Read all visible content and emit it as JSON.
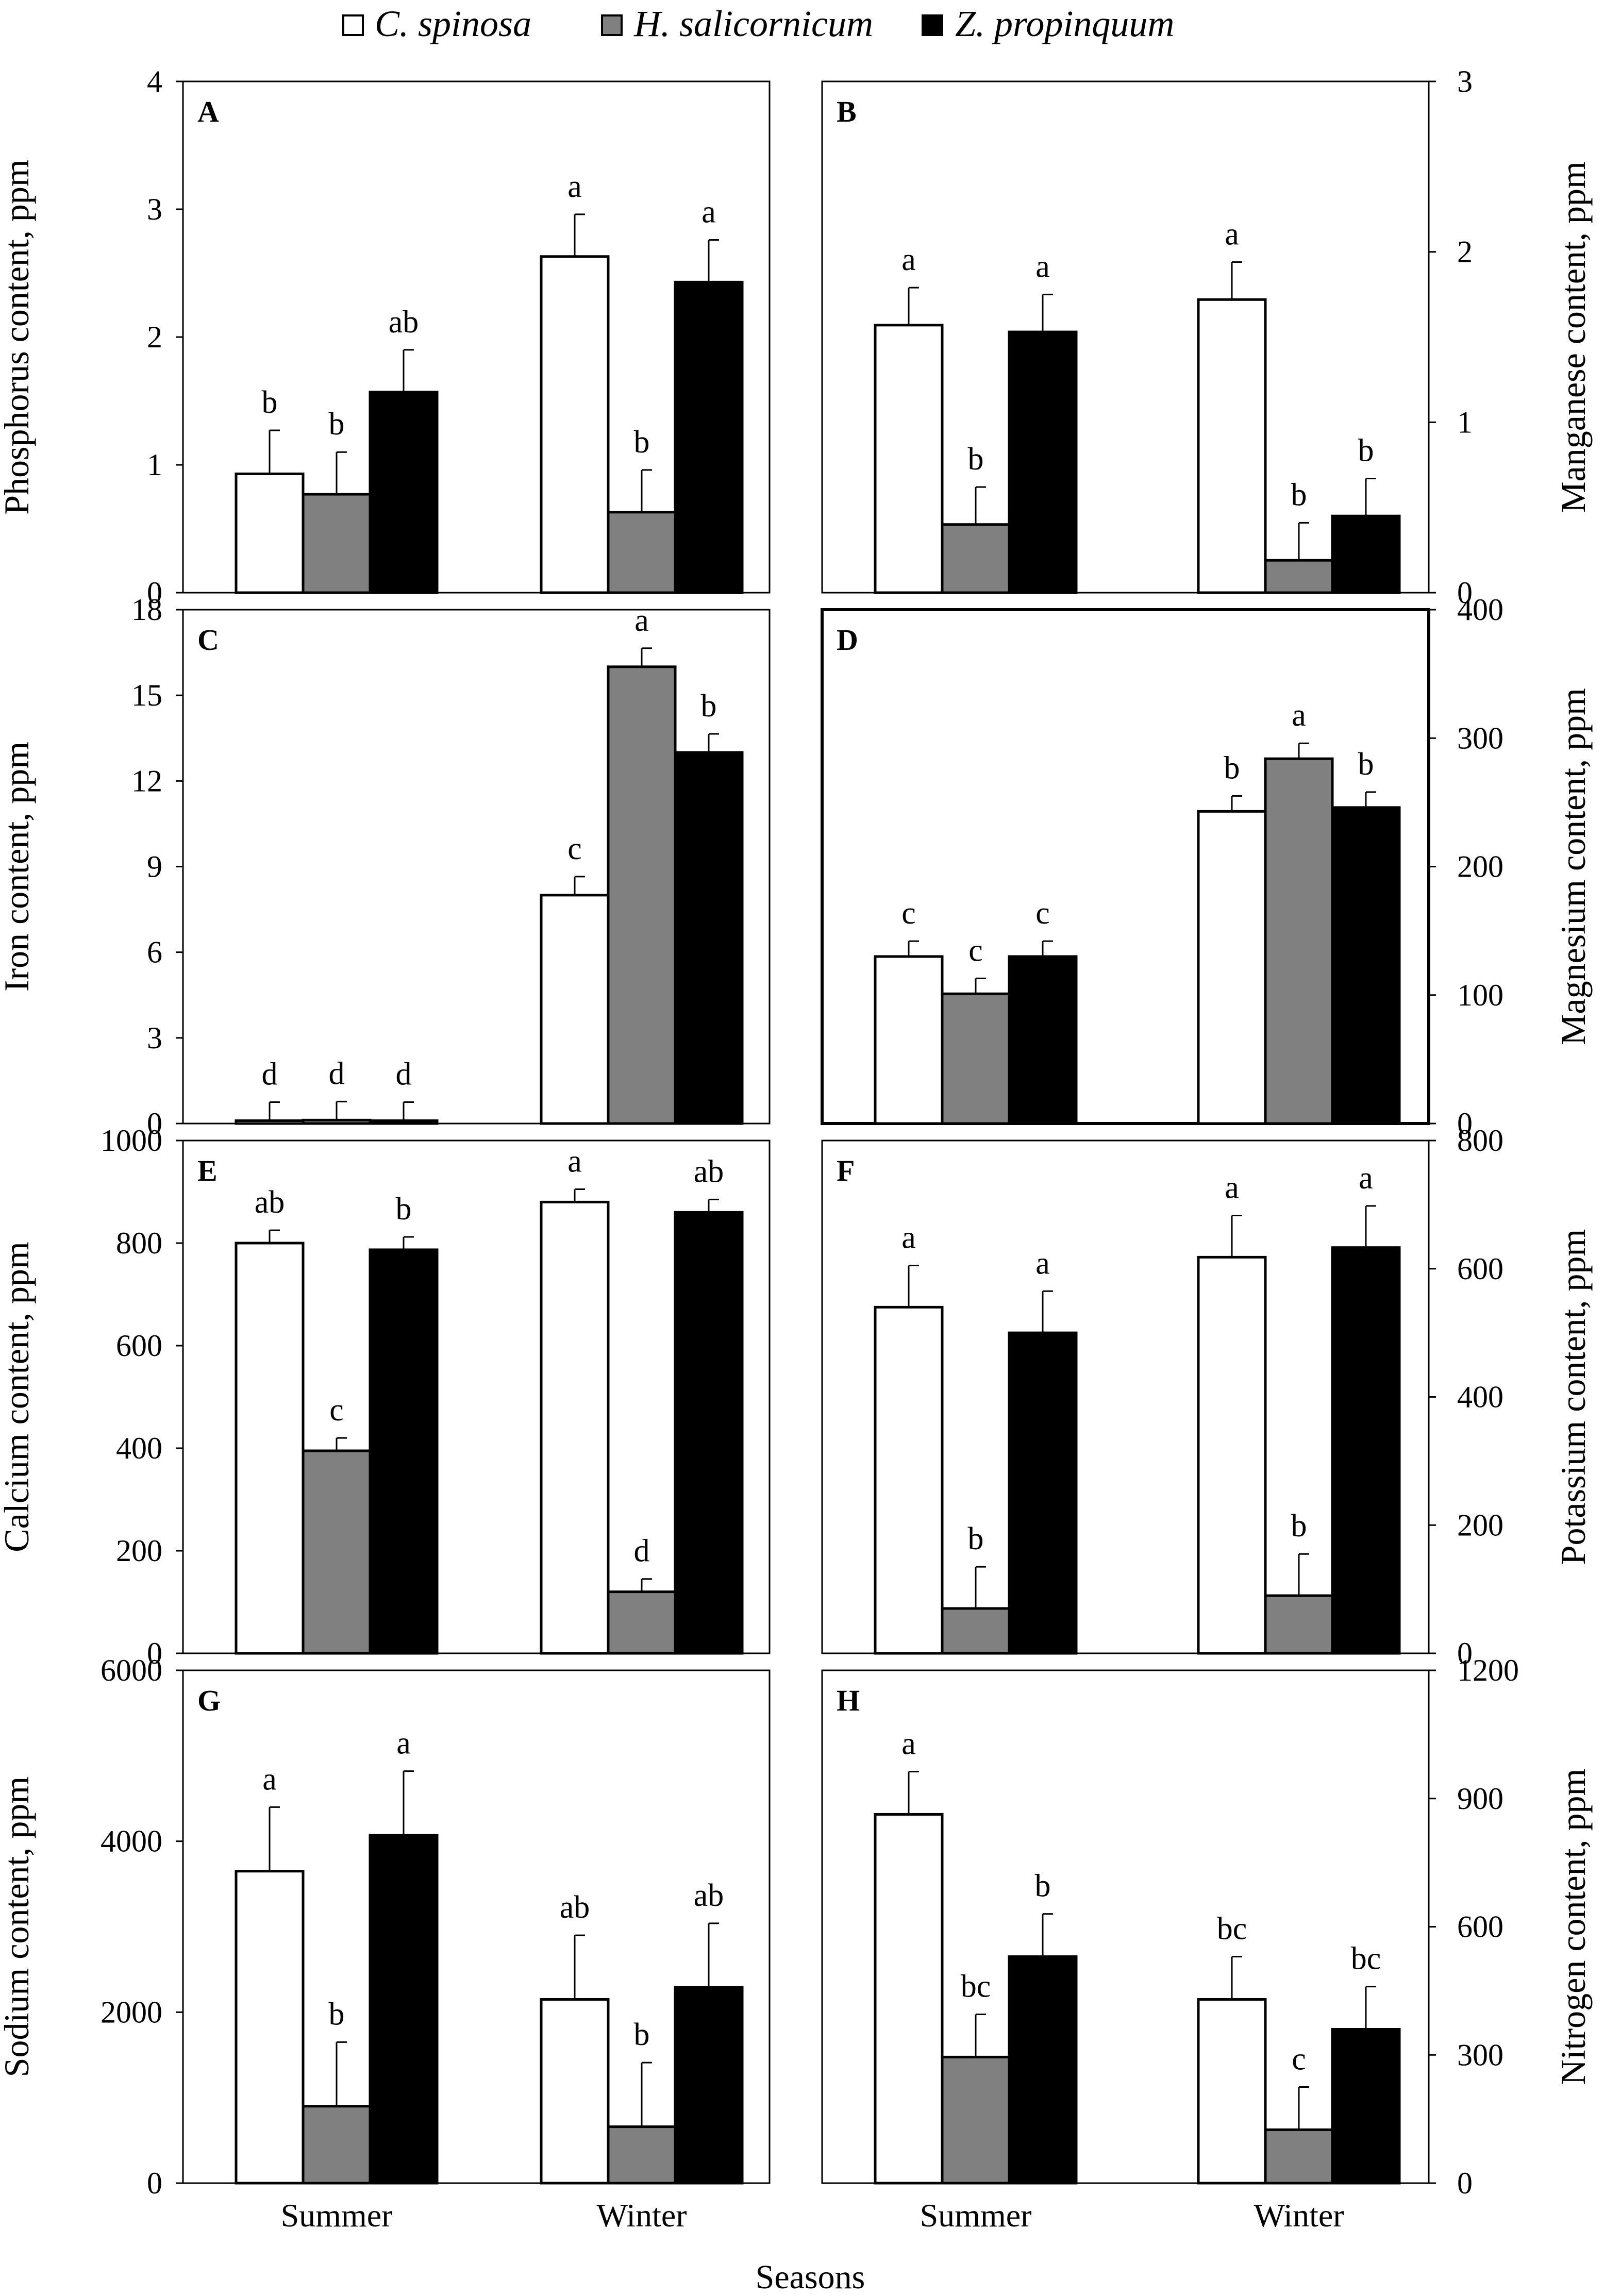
{
  "legend": [
    {
      "name": "C. spinosa",
      "color": "#ffffff"
    },
    {
      "name": "H. salicornicum",
      "color": "#808080"
    },
    {
      "name": "Z. propinquum",
      "color": "#000000"
    }
  ],
  "xlabel": "Seasons",
  "chart_data": [
    {
      "type": "bar",
      "panel": "A",
      "ylabel": "Phosphorus content, ppm",
      "axis_side": "left",
      "ylim": [
        0,
        4
      ],
      "yticks": [
        "0",
        "1",
        "2",
        "3",
        "4"
      ],
      "categories": [
        "Summer",
        "Winter"
      ],
      "series": [
        {
          "name": "C. spinosa",
          "values": [
            0.93,
            2.63
          ],
          "errors": [
            0.34,
            0.33
          ],
          "labels": [
            "b",
            "a"
          ]
        },
        {
          "name": "H. salicornicum",
          "values": [
            0.77,
            0.63
          ],
          "errors": [
            0.33,
            0.33
          ],
          "labels": [
            "b",
            "b"
          ]
        },
        {
          "name": "Z. propinquum",
          "values": [
            1.57,
            2.43
          ],
          "errors": [
            0.33,
            0.33
          ],
          "labels": [
            "ab",
            "a"
          ]
        }
      ]
    },
    {
      "type": "bar",
      "panel": "B",
      "ylabel": "Manganese content, ppm",
      "axis_side": "right",
      "ylim": [
        0,
        3
      ],
      "yticks": [
        "0",
        "1",
        "2",
        "3"
      ],
      "categories": [
        "Summer",
        "Winter"
      ],
      "series": [
        {
          "name": "C. spinosa",
          "values": [
            1.57,
            1.72
          ],
          "errors": [
            0.22,
            0.22
          ],
          "labels": [
            "a",
            "a"
          ]
        },
        {
          "name": "H. salicornicum",
          "values": [
            0.4,
            0.19
          ],
          "errors": [
            0.22,
            0.22
          ],
          "labels": [
            "b",
            "b"
          ]
        },
        {
          "name": "Z. propinquum",
          "values": [
            1.53,
            0.45
          ],
          "errors": [
            0.22,
            0.22
          ],
          "labels": [
            "a",
            "b"
          ]
        }
      ]
    },
    {
      "type": "bar",
      "panel": "C",
      "ylabel": "Iron content, ppm",
      "axis_side": "left",
      "ylim": [
        0,
        18
      ],
      "yticks": [
        "0",
        "3",
        "6",
        "9",
        "12",
        "15",
        "18"
      ],
      "categories": [
        "Summer",
        "Winter"
      ],
      "series": [
        {
          "name": "C. spinosa",
          "values": [
            0.1,
            8.0
          ],
          "errors": [
            0.65,
            0.65
          ],
          "labels": [
            "d",
            "c"
          ]
        },
        {
          "name": "H. salicornicum",
          "values": [
            0.12,
            16.0
          ],
          "errors": [
            0.65,
            0.65
          ],
          "labels": [
            "d",
            "a"
          ]
        },
        {
          "name": "Z. propinquum",
          "values": [
            0.1,
            13.0
          ],
          "errors": [
            0.65,
            0.65
          ],
          "labels": [
            "d",
            "b"
          ]
        }
      ]
    },
    {
      "type": "bar",
      "panel": "D",
      "ylabel": "Magnesium content, ppm",
      "axis_side": "right",
      "ylim": [
        0,
        400
      ],
      "yticks": [
        "0",
        "100",
        "200",
        "300",
        "400"
      ],
      "categories": [
        "Summer",
        "Winter"
      ],
      "series": [
        {
          "name": "C. spinosa",
          "values": [
            130,
            243
          ],
          "errors": [
            12,
            12
          ],
          "labels": [
            "c",
            "b"
          ]
        },
        {
          "name": "H. salicornicum",
          "values": [
            101,
            284
          ],
          "errors": [
            12,
            12
          ],
          "labels": [
            "c",
            "a"
          ]
        },
        {
          "name": "Z. propinquum",
          "values": [
            130,
            246
          ],
          "errors": [
            12,
            12
          ],
          "labels": [
            "c",
            "b"
          ]
        }
      ]
    },
    {
      "type": "bar",
      "panel": "E",
      "ylabel": "Calcium content, ppm",
      "axis_side": "left",
      "ylim": [
        0,
        1000
      ],
      "yticks": [
        "0",
        "200",
        "400",
        "600",
        "800",
        "1000"
      ],
      "categories": [
        "Summer",
        "Winter"
      ],
      "series": [
        {
          "name": "C. spinosa",
          "values": [
            800,
            880
          ],
          "errors": [
            25,
            25
          ],
          "labels": [
            "ab",
            "a"
          ]
        },
        {
          "name": "H. salicornicum",
          "values": [
            395,
            120
          ],
          "errors": [
            25,
            25
          ],
          "labels": [
            "c",
            "d"
          ]
        },
        {
          "name": "Z. propinquum",
          "values": [
            787,
            860
          ],
          "errors": [
            25,
            25
          ],
          "labels": [
            "b",
            "ab"
          ]
        }
      ]
    },
    {
      "type": "bar",
      "panel": "F",
      "ylabel": "Potassium content, ppm",
      "axis_side": "right",
      "ylim": [
        0,
        800
      ],
      "yticks": [
        "0",
        "200",
        "400",
        "600",
        "800"
      ],
      "categories": [
        "Summer",
        "Winter"
      ],
      "series": [
        {
          "name": "C. spinosa",
          "values": [
            540,
            618
          ],
          "errors": [
            65,
            65
          ],
          "labels": [
            "a",
            "a"
          ]
        },
        {
          "name": "H. salicornicum",
          "values": [
            70,
            90
          ],
          "errors": [
            65,
            65
          ],
          "labels": [
            "b",
            "b"
          ]
        },
        {
          "name": "Z. propinquum",
          "values": [
            500,
            633
          ],
          "errors": [
            65,
            65
          ],
          "labels": [
            "a",
            "a"
          ]
        }
      ]
    },
    {
      "type": "bar",
      "panel": "G",
      "ylabel": "Sodium content, ppm",
      "axis_side": "left",
      "ylim": [
        0,
        6000
      ],
      "yticks": [
        "0",
        "2000",
        "4000",
        "6000"
      ],
      "categories": [
        "Summer",
        "Winter"
      ],
      "series": [
        {
          "name": "C. spinosa",
          "values": [
            3650,
            2150
          ],
          "errors": [
            750,
            750
          ],
          "labels": [
            "a",
            "ab"
          ]
        },
        {
          "name": "H. salicornicum",
          "values": [
            900,
            660
          ],
          "errors": [
            750,
            750
          ],
          "labels": [
            "b",
            "b"
          ]
        },
        {
          "name": "Z. propinquum",
          "values": [
            4070,
            2290
          ],
          "errors": [
            750,
            750
          ],
          "labels": [
            "a",
            "ab"
          ]
        }
      ]
    },
    {
      "type": "bar",
      "panel": "H",
      "ylabel": "Nitrogen content, ppm",
      "axis_side": "right",
      "ylim": [
        0,
        1200
      ],
      "yticks": [
        "0",
        "300",
        "600",
        "900",
        "1200"
      ],
      "categories": [
        "Summer",
        "Winter"
      ],
      "series": [
        {
          "name": "C. spinosa",
          "values": [
            863,
            430
          ],
          "errors": [
            100,
            100
          ],
          "labels": [
            "a",
            "bc"
          ]
        },
        {
          "name": "H. salicornicum",
          "values": [
            295,
            125
          ],
          "errors": [
            100,
            100
          ],
          "labels": [
            "bc",
            "c"
          ]
        },
        {
          "name": "Z. propinquum",
          "values": [
            530,
            360
          ],
          "errors": [
            100,
            100
          ],
          "labels": [
            "b",
            "bc"
          ]
        }
      ]
    }
  ]
}
